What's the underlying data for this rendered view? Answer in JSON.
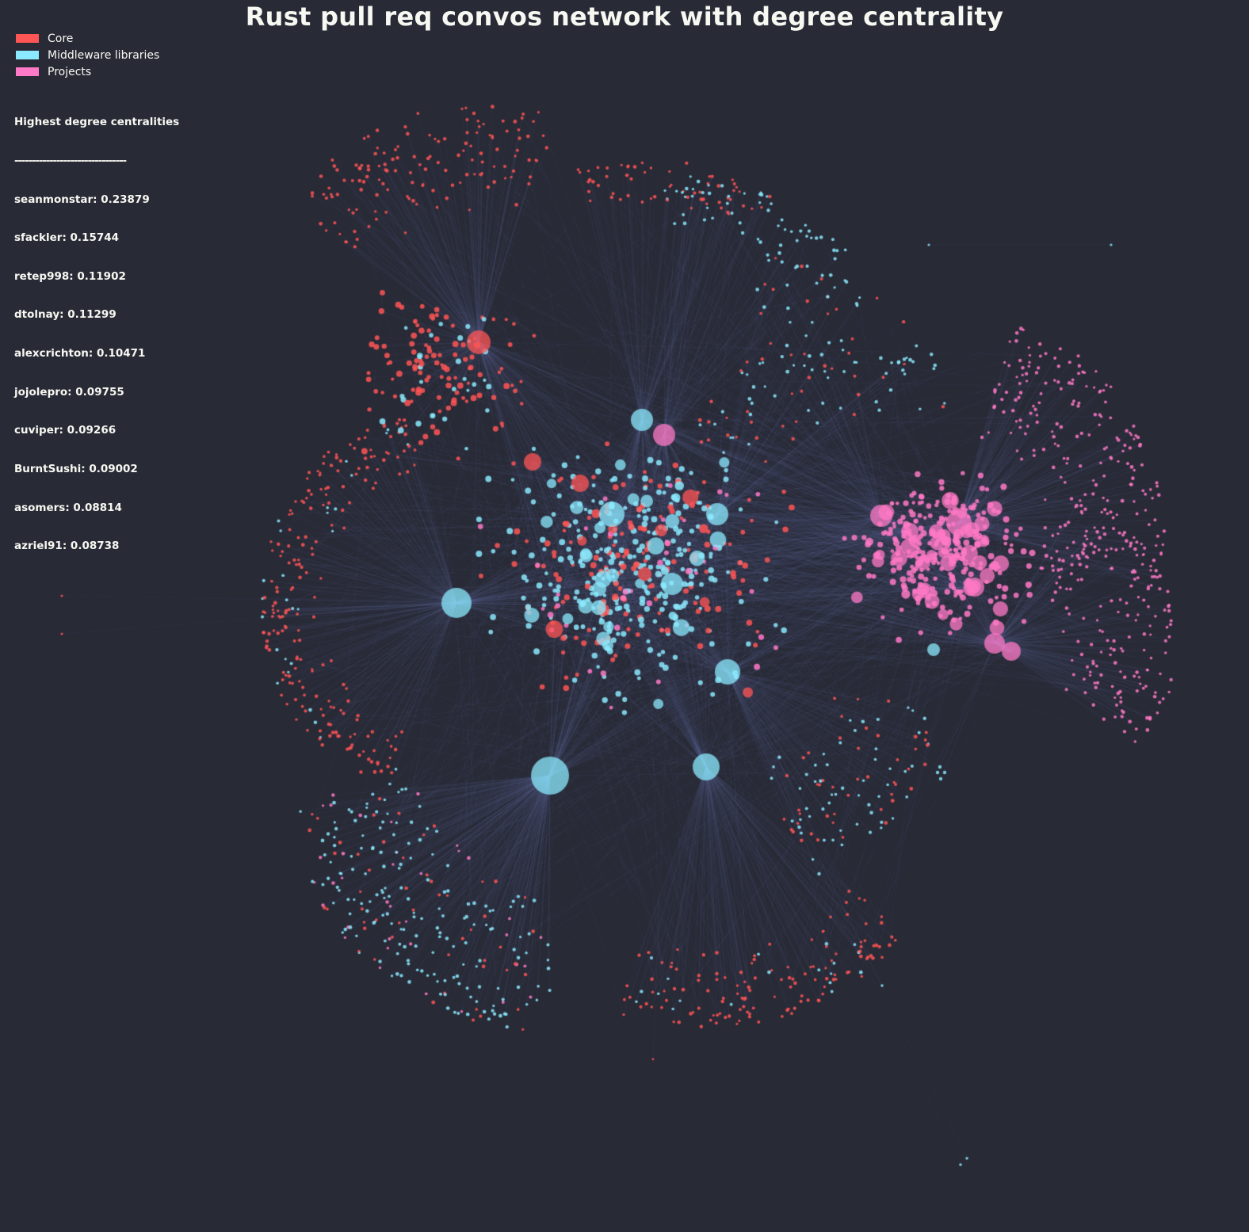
{
  "title": "Rust pull req convos network with degree centrality",
  "legend": [
    {
      "label": "Core",
      "color": "#ff5555",
      "icon": "red-swatch"
    },
    {
      "label": "Middleware libraries",
      "color": "#8be9fd",
      "icon": "cyan-swatch"
    },
    {
      "label": "Projects",
      "color": "#ff79c6",
      "icon": "pink-swatch"
    }
  ],
  "stats": {
    "heading": "Highest degree centralities",
    "divider": "--------------------------------",
    "entries": [
      "seanmonstar: 0.23879",
      "sfackler: 0.15744",
      "retep998: 0.11902",
      "dtolnay: 0.11299",
      "alexcrichton: 0.10471",
      "jojolepro: 0.09755",
      "cuviper: 0.09266",
      "BurntSushi: 0.09002",
      "asomers: 0.08814",
      "azriel91: 0.08738"
    ]
  },
  "chart_data": {
    "type": "network",
    "title": "Rust pull req convos network with degree centrality",
    "communities": [
      "Core",
      "Middleware libraries",
      "Projects"
    ],
    "colors": {
      "Core": "#ff5555",
      "Middleware libraries": "#8be9fd",
      "Projects": "#ff79c6",
      "edge": "#6272a4",
      "background": "#282a36"
    },
    "top_degree_centrality": [
      {
        "name": "seanmonstar",
        "value": 0.23879
      },
      {
        "name": "sfackler",
        "value": 0.15744
      },
      {
        "name": "retep998",
        "value": 0.11902
      },
      {
        "name": "dtolnay",
        "value": 0.11299
      },
      {
        "name": "alexcrichton",
        "value": 0.10471
      },
      {
        "name": "jojolepro",
        "value": 0.09755
      },
      {
        "name": "cuviper",
        "value": 0.09266
      },
      {
        "name": "BurntSushi",
        "value": 0.09002
      },
      {
        "name": "asomers",
        "value": 0.08814
      },
      {
        "name": "azriel91",
        "value": 0.08738
      }
    ]
  }
}
